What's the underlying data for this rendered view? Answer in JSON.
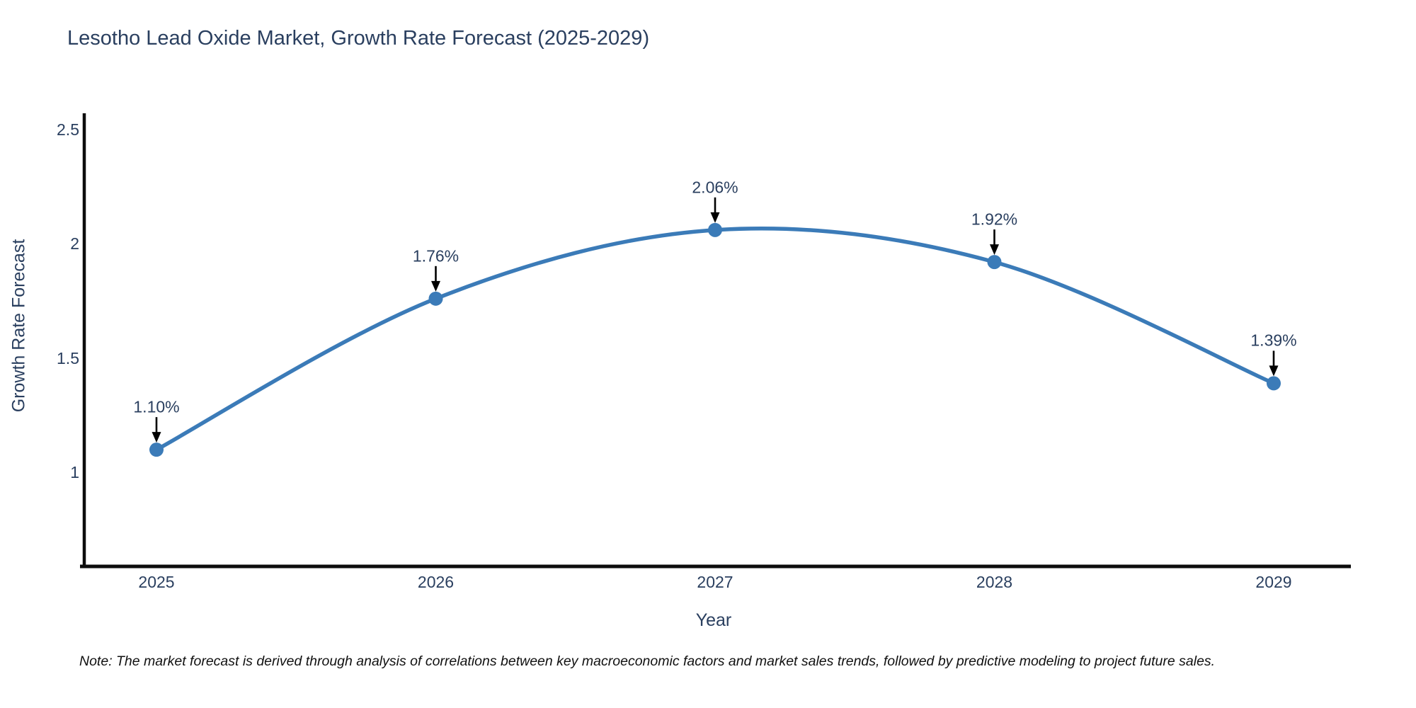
{
  "page": {
    "background": "#ffffff"
  },
  "chart_data": {
    "type": "line",
    "line_shape": "spline",
    "title": "Lesotho Lead Oxide Market, Growth Rate Forecast (2025-2029)",
    "xlabel": "Year",
    "ylabel": "Growth Rate Forecast",
    "categories": [
      2025,
      2026,
      2027,
      2028,
      2029
    ],
    "values": [
      1.1,
      1.76,
      2.06,
      1.92,
      1.39
    ],
    "point_labels": [
      "1.10%",
      "1.76%",
      "2.06%",
      "1.92%",
      "1.39%"
    ],
    "x_tick_labels": [
      "2025",
      "2026",
      "2027",
      "2028",
      "2029"
    ],
    "y_tick_labels": [
      "2.5",
      "2",
      "1.5",
      "1"
    ],
    "y_tick_values": [
      2.5,
      2,
      1.5,
      1
    ],
    "ylim": [
      0.59,
      2.57
    ],
    "grid": false,
    "legend": "none",
    "colors": {
      "line": "#3b7bb8",
      "marker": "#3b7bb8",
      "axis_line": "#0d0d0d",
      "tick_text": "#2a3f5f",
      "annotation_text": "#2a3f5f",
      "annotation_arrow": "#000000",
      "title_text": "#2a3f5f"
    }
  },
  "note": {
    "text": "Note: The market forecast is derived through analysis of correlations between key macroeconomic factors and market sales trends, followed by predictive modeling to project future sales."
  }
}
